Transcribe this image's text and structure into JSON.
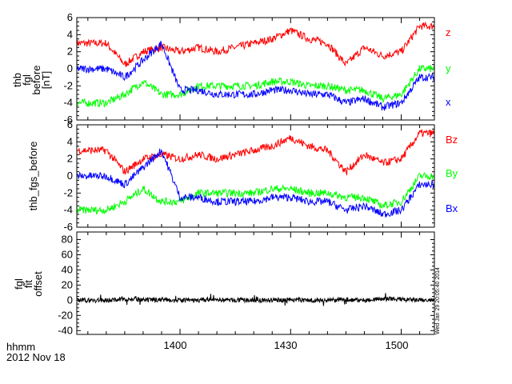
{
  "chart_data": [
    {
      "type": "line",
      "ylabel_lines": [
        "thb",
        "fgl",
        "before",
        "[nT]"
      ],
      "ylim": [
        -6,
        6
      ],
      "yticks": [
        "6",
        "4",
        "2",
        "0",
        "-2",
        "-4",
        "-6"
      ],
      "x": [
        "13:40",
        "13:45",
        "13:50",
        "13:55",
        "14:00",
        "14:05",
        "14:10",
        "14:15",
        "14:20",
        "14:25",
        "14:30",
        "14:35",
        "14:40",
        "14:45",
        "14:50",
        "14:55",
        "15:00",
        "15:05"
      ],
      "series": [
        {
          "name": "z",
          "color": "#ff0000",
          "values": [
            3.0,
            0.5,
            2.0,
            2.5,
            2.0,
            2.5,
            2.0,
            2.5,
            3.0,
            3.5,
            4.5,
            3.5,
            3.0,
            0.5,
            2.5,
            1.5,
            2.0,
            5.0
          ]
        },
        {
          "name": "y",
          "color": "#00ff00",
          "values": [
            -4.0,
            -3.0,
            -1.5,
            -3.0,
            -3.0,
            -2.0,
            -2.0,
            -2.0,
            -2.0,
            -1.5,
            -1.5,
            -2.0,
            -2.0,
            -2.5,
            -2.5,
            -3.5,
            -3.0,
            0.0
          ]
        },
        {
          "name": "x",
          "color": "#0000ff",
          "values": [
            0.0,
            -1.0,
            1.0,
            3.0,
            -2.5,
            -2.5,
            -3.0,
            -3.0,
            -3.0,
            -2.5,
            -2.5,
            -3.0,
            -3.0,
            -4.0,
            -3.5,
            -4.5,
            -4.0,
            -1.0
          ]
        }
      ]
    },
    {
      "type": "line",
      "ylabel_lines": [
        "thb_fgs_before"
      ],
      "ylim": [
        -6,
        6
      ],
      "yticks": [
        "6",
        "4",
        "2",
        "0",
        "-2",
        "-4",
        "-6"
      ],
      "x": [
        "13:40",
        "13:45",
        "13:50",
        "13:55",
        "14:00",
        "14:05",
        "14:10",
        "14:15",
        "14:20",
        "14:25",
        "14:30",
        "14:35",
        "14:40",
        "14:45",
        "14:50",
        "14:55",
        "15:00",
        "15:05"
      ],
      "series": [
        {
          "name": "Bz",
          "color": "#ff0000",
          "values": [
            3.0,
            0.5,
            2.0,
            2.5,
            2.0,
            2.5,
            2.0,
            2.5,
            3.0,
            3.5,
            4.5,
            3.5,
            3.0,
            0.5,
            2.5,
            1.5,
            2.0,
            5.0
          ]
        },
        {
          "name": "By",
          "color": "#00ff00",
          "values": [
            -4.0,
            -3.0,
            -1.5,
            -3.0,
            -3.0,
            -2.0,
            -2.0,
            -2.0,
            -2.0,
            -1.5,
            -1.5,
            -2.0,
            -2.0,
            -2.5,
            -2.5,
            -3.5,
            -3.0,
            0.0
          ]
        },
        {
          "name": "Bx",
          "color": "#0000ff",
          "values": [
            0.0,
            -1.0,
            1.0,
            3.0,
            -2.5,
            -2.5,
            -3.0,
            -3.0,
            -3.0,
            -2.5,
            -2.5,
            -3.0,
            -3.0,
            -4.0,
            -3.5,
            -4.5,
            -4.0,
            -1.0
          ]
        }
      ]
    },
    {
      "type": "line",
      "ylabel_lines": [
        "fgl",
        "fit",
        "offset"
      ],
      "ylim": [
        -45,
        90
      ],
      "yticks": [
        "80",
        "60",
        "40",
        "20",
        "0",
        "-20",
        "-40"
      ],
      "x": [
        "13:40",
        "13:45",
        "13:50",
        "13:55",
        "14:00",
        "14:05",
        "14:10",
        "14:15",
        "14:20",
        "14:25",
        "14:30",
        "14:35",
        "14:40",
        "14:45",
        "14:50",
        "14:55",
        "15:00",
        "15:05"
      ],
      "series": [
        {
          "name": "",
          "color": "#000000",
          "values": [
            0,
            2,
            0,
            1,
            0,
            0,
            1,
            0,
            0,
            0,
            1,
            0,
            0,
            1,
            0,
            2,
            1,
            0
          ]
        }
      ]
    }
  ],
  "xaxis": {
    "ticks": [
      "1400",
      "1430",
      "1500"
    ],
    "label": "hhmm",
    "date": "2012 Nov 18"
  },
  "timestamp": "Wed Jan 29 20:05:40 2014",
  "colors": {
    "z": "#ff0000",
    "y": "#00ff00",
    "x": "#0000ff",
    "offset": "#000000"
  }
}
